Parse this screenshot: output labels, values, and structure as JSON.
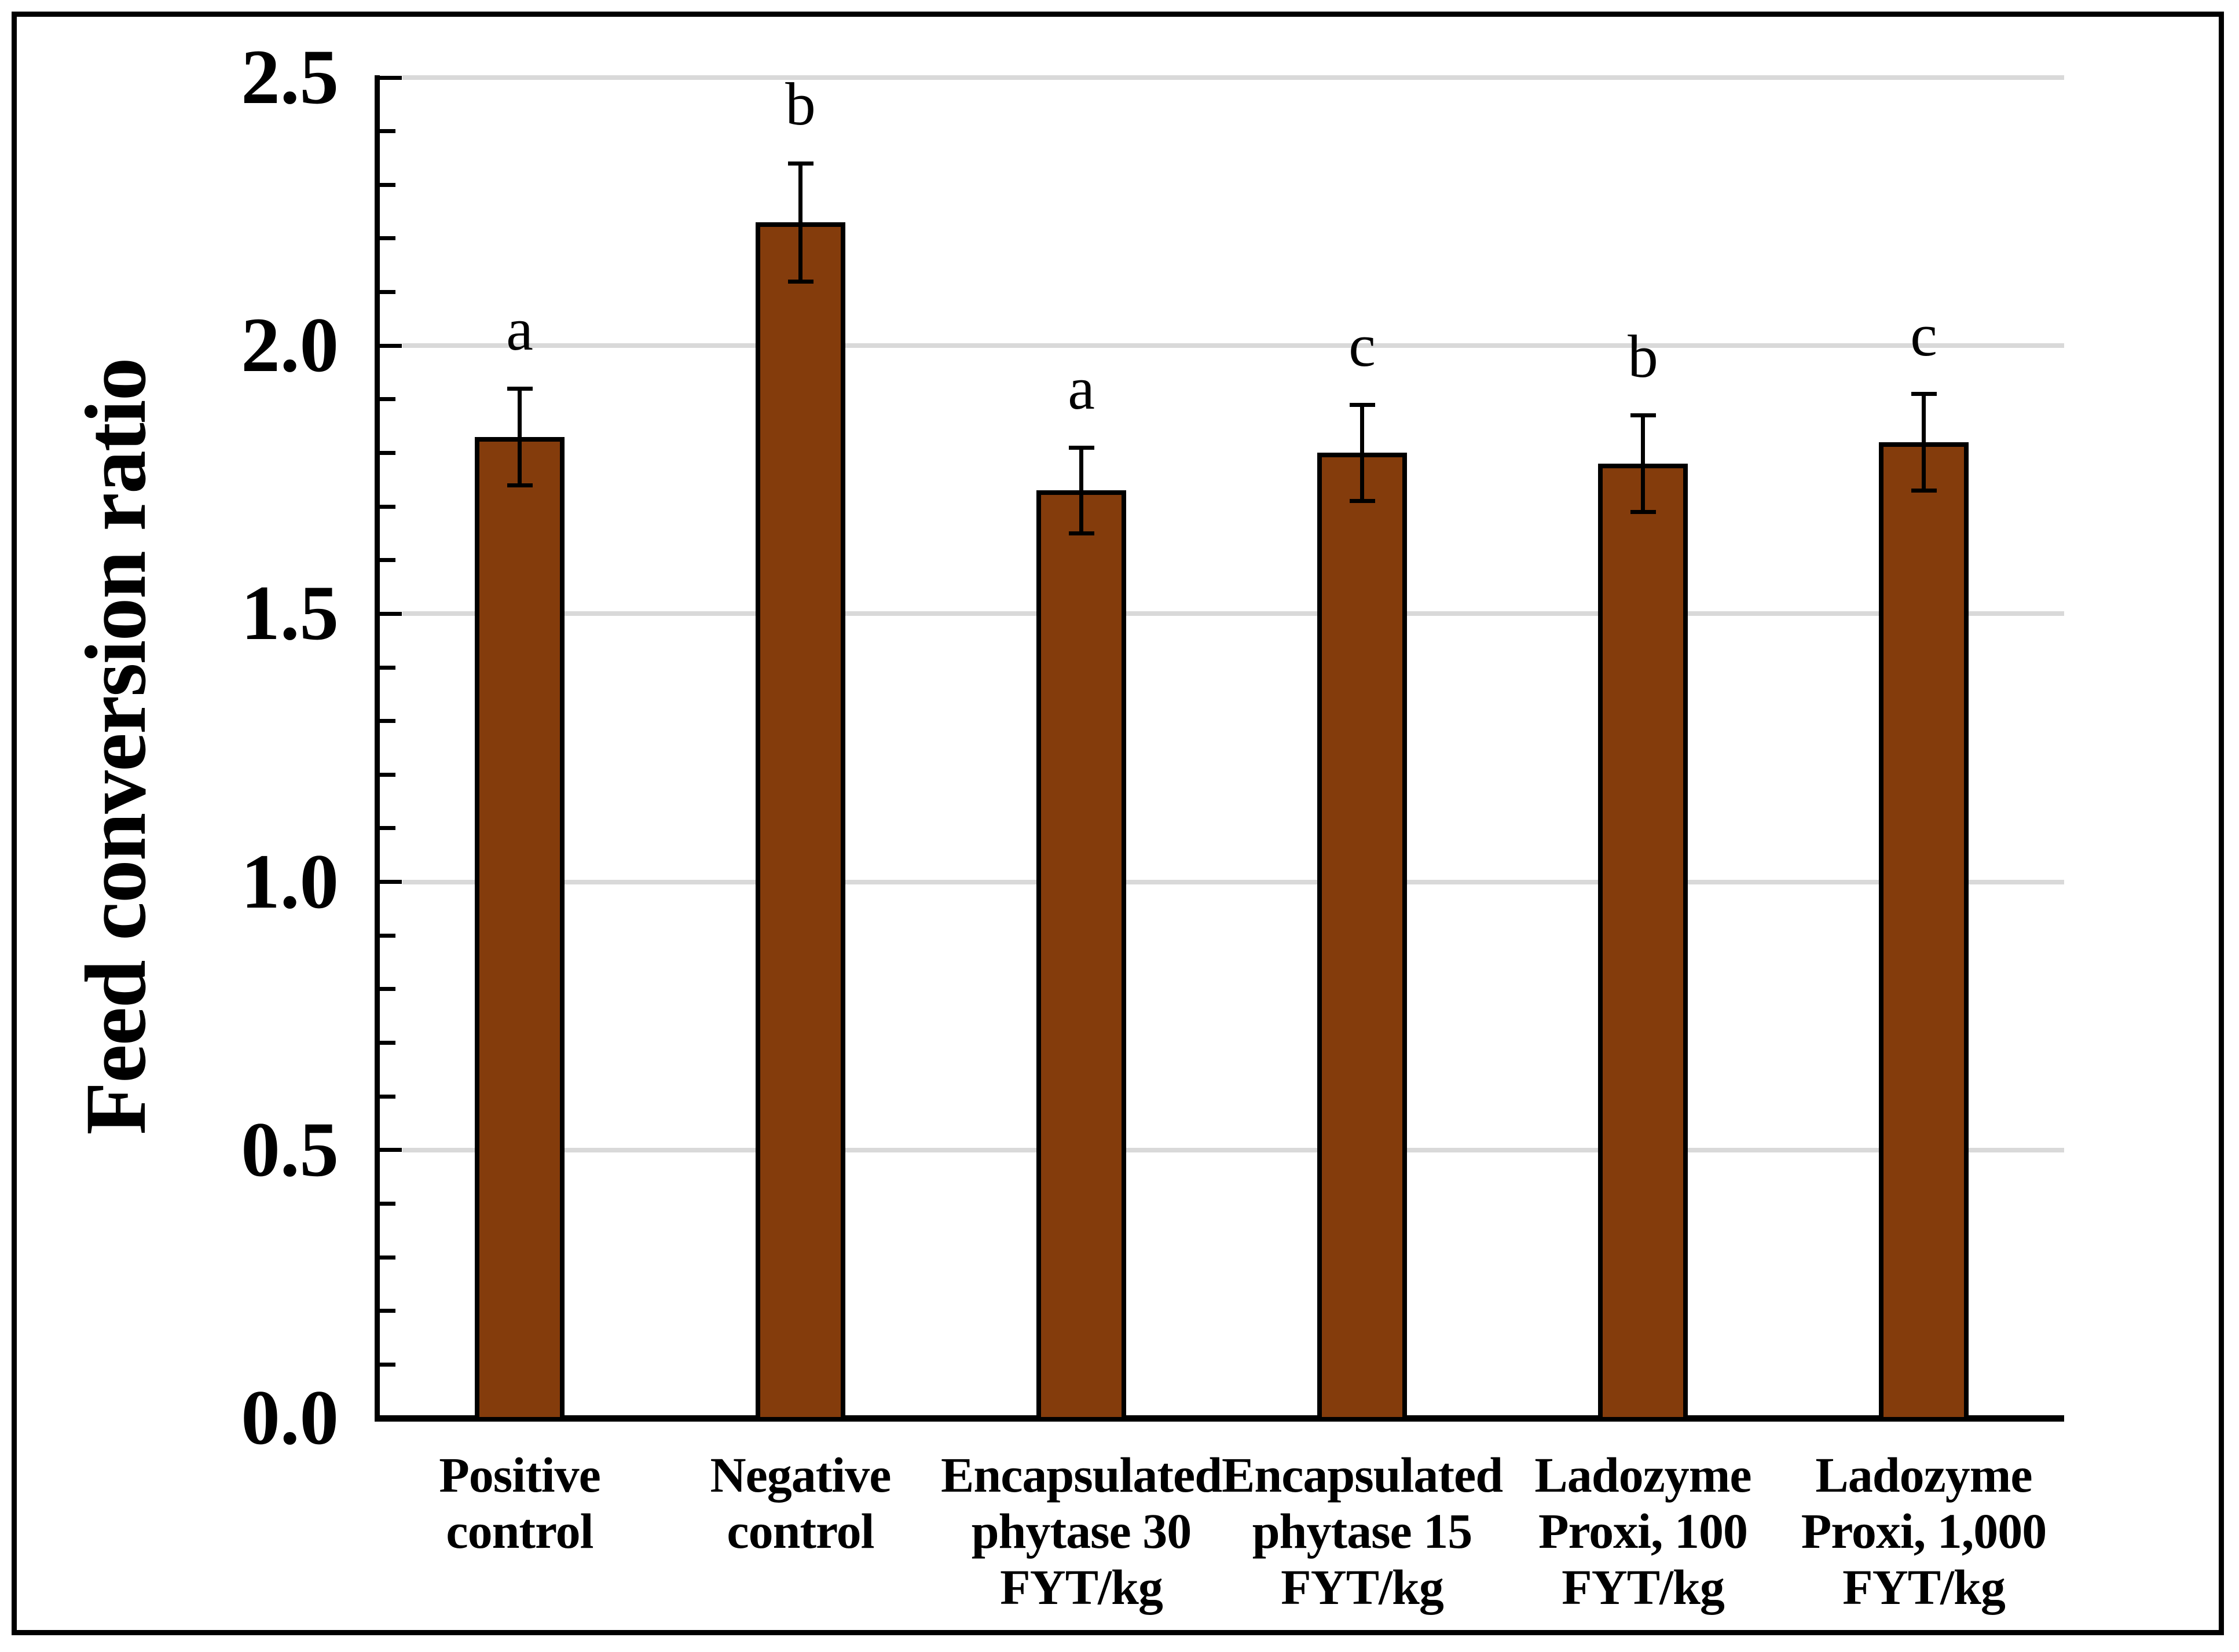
{
  "chart_data": {
    "type": "bar",
    "title": "",
    "ylabel": "Feed conversion ratio",
    "xlabel": "",
    "ylim": [
      0.0,
      2.5
    ],
    "ytick_step": 0.5,
    "minor_tick_step": 0.1,
    "ytick_labels": [
      "0.0",
      "0.5",
      "1.0",
      "1.5",
      "2.0",
      "2.5"
    ],
    "grid": "horizontal-major",
    "legend": "none",
    "colors": {
      "bar_fill": "#843C0C",
      "bar_border": "#000000",
      "gridline": "#D9D9D9",
      "axis": "#000000",
      "error_bar": "#000000",
      "text": "#000000"
    },
    "categories": [
      "Positive control",
      "Negative control",
      "Encapsulated phytase 30 FYT/kg",
      "Encapsulated phytase 15 FYT/kg",
      "Ladozyme Proxi, 100 FYT/kg",
      "Ladozyme Proxi, 1,000 FYT/kg"
    ],
    "category_label_lines": [
      [
        "Positive control"
      ],
      [
        "Negative",
        "control"
      ],
      [
        "Encapsulated",
        "phytase 30",
        "FYT/kg"
      ],
      [
        "Encapsulated",
        "phytase 15",
        "FYT/kg"
      ],
      [
        "Ladozyme",
        "Proxi, 100",
        "FYT/kg"
      ],
      [
        "Ladozyme",
        "Proxi, 1,000",
        "FYT/kg"
      ]
    ],
    "values": [
      1.83,
      2.23,
      1.73,
      1.8,
      1.78,
      1.82
    ],
    "errors": [
      0.09,
      0.11,
      0.08,
      0.09,
      0.09,
      0.09
    ],
    "significance_letters": [
      "a",
      "b",
      "a",
      "c",
      "b",
      "c"
    ]
  }
}
